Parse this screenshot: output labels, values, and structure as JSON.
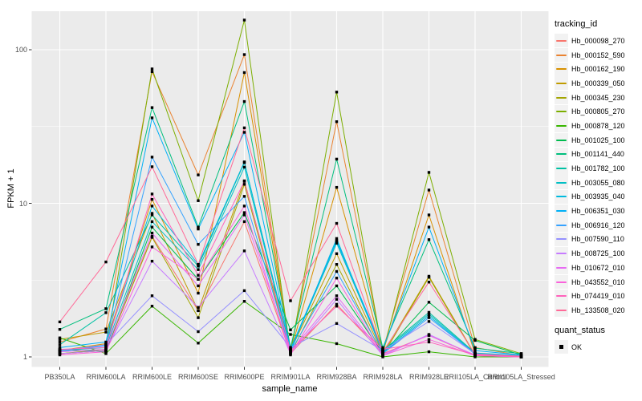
{
  "chart_data": {
    "type": "line",
    "title": "",
    "xlabel": "sample_name",
    "ylabel": "FPKM + 1",
    "yscale": "log10",
    "yticks": [
      1,
      10,
      100
    ],
    "ylim": [
      0.87,
      178
    ],
    "grid": true,
    "legend_title": "tracking_id",
    "legend_position": "right",
    "marker_legend": {
      "title": "quant_status",
      "label": "OK",
      "shape": "square",
      "color": "#000000"
    },
    "panel_background": "#EBEBEB",
    "grid_color": "#FFFFFF",
    "x_categories": [
      "PB350LA",
      "RRIM600LA",
      "RRIM600LE",
      "RRIM600SE",
      "RRIM600PE",
      "RRIM901LA",
      "RRIM928BA",
      "RRIM928LA",
      "RRIM928LE",
      "RRII105LA_Control",
      "RRII105LA_Stressed"
    ],
    "series": [
      {
        "name": "Hb_000098_270",
        "color": "#F8766D",
        "values": [
          1.05,
          1.1,
          6.1,
          2.0,
          7.6,
          1.05,
          2.2,
          1.05,
          1.38,
          1.02,
          1.0
        ]
      },
      {
        "name": "Hb_000152_590",
        "color": "#EA8331",
        "values": [
          1.25,
          1.52,
          72,
          15.3,
          93,
          1.1,
          34,
          1.1,
          12.2,
          1.15,
          1.02
        ]
      },
      {
        "name": "Hb_000162_190",
        "color": "#D89000",
        "values": [
          1.1,
          1.22,
          10.6,
          2.6,
          71,
          1.08,
          12.7,
          1.08,
          8.4,
          1.05,
          1.0
        ]
      },
      {
        "name": "Hb_000339_050",
        "color": "#C09B00",
        "values": [
          1.3,
          1.45,
          8.6,
          2.0,
          14.0,
          1.1,
          4.7,
          1.05,
          3.35,
          1.03,
          1.0
        ]
      },
      {
        "name": "Hb_000345_230",
        "color": "#A3A500",
        "values": [
          1.05,
          1.1,
          6.0,
          1.8,
          13.3,
          1.05,
          4.0,
          1.02,
          3.3,
          1.02,
          1.0
        ]
      },
      {
        "name": "Hb_000805_270",
        "color": "#7CAE00",
        "values": [
          1.05,
          1.12,
          75,
          10.4,
          156,
          1.05,
          53,
          1.05,
          15.9,
          1.3,
          1.05
        ]
      },
      {
        "name": "Hb_000878_120",
        "color": "#39B600",
        "values": [
          1.33,
          1.05,
          2.14,
          1.23,
          2.3,
          1.4,
          1.22,
          1.0,
          1.08,
          1.0,
          1.0
        ]
      },
      {
        "name": "Hb_001025_100",
        "color": "#00BB4E",
        "values": [
          1.12,
          1.08,
          7.0,
          3.2,
          8.7,
          1.5,
          2.9,
          1.05,
          2.27,
          1.28,
          1.03
        ]
      },
      {
        "name": "Hb_001141_440",
        "color": "#00BF7D",
        "values": [
          1.51,
          2.06,
          42,
          7.0,
          46,
          1.15,
          19.4,
          1.15,
          5.8,
          1.14,
          1.05
        ]
      },
      {
        "name": "Hb_001782_100",
        "color": "#00C1A3",
        "values": [
          1.2,
          1.94,
          8.4,
          3.9,
          18.4,
          1.12,
          5.7,
          1.1,
          1.95,
          1.06,
          1.02
        ]
      },
      {
        "name": "Hb_003055_080",
        "color": "#00BFC4",
        "values": [
          1.1,
          1.15,
          7.6,
          3.7,
          17.2,
          1.1,
          5.5,
          1.08,
          1.9,
          1.05,
          1.01
        ]
      },
      {
        "name": "Hb_003935_040",
        "color": "#00BADE",
        "values": [
          1.08,
          1.2,
          9.6,
          4.0,
          18.6,
          1.08,
          5.9,
          1.06,
          1.85,
          1.04,
          1.01
        ]
      },
      {
        "name": "Hb_006351_030",
        "color": "#00B0F6",
        "values": [
          1.15,
          1.25,
          36,
          6.8,
          29,
          1.12,
          5.7,
          1.12,
          7.0,
          1.1,
          1.03
        ]
      },
      {
        "name": "Hb_006916_120",
        "color": "#35A2FF",
        "values": [
          1.1,
          1.18,
          20,
          5.4,
          11.1,
          1.08,
          3.6,
          1.05,
          1.8,
          1.05,
          1.02
        ]
      },
      {
        "name": "Hb_007590_110",
        "color": "#9590FF",
        "values": [
          1.1,
          1.2,
          2.5,
          1.46,
          2.7,
          1.15,
          1.65,
          1.1,
          1.7,
          1.05,
          1.0
        ]
      },
      {
        "name": "Hb_008725_100",
        "color": "#C77CFF",
        "values": [
          1.05,
          1.1,
          4.2,
          2.1,
          4.9,
          1.05,
          2.37,
          1.02,
          1.4,
          1.02,
          1.0
        ]
      },
      {
        "name": "Hb_010672_010",
        "color": "#E76BF3",
        "values": [
          1.08,
          1.12,
          6.4,
          2.9,
          8.4,
          1.08,
          2.5,
          1.04,
          1.38,
          1.03,
          1.0
        ]
      },
      {
        "name": "Hb_043552_010",
        "color": "#FA62DB",
        "values": [
          1.03,
          1.08,
          5.2,
          3.2,
          9.6,
          1.03,
          3.26,
          1.02,
          1.3,
          1.02,
          1.0
        ]
      },
      {
        "name": "Hb_074419_010",
        "color": "#FF62BC",
        "values": [
          1.12,
          1.15,
          11.5,
          3.4,
          13.9,
          1.1,
          2.14,
          1.12,
          1.25,
          1.03,
          1.0
        ]
      },
      {
        "name": "Hb_133508_020",
        "color": "#FF6A98",
        "values": [
          1.69,
          4.15,
          17.3,
          4.0,
          31,
          2.32,
          7.4,
          1.08,
          3.07,
          1.04,
          1.01
        ]
      }
    ]
  }
}
